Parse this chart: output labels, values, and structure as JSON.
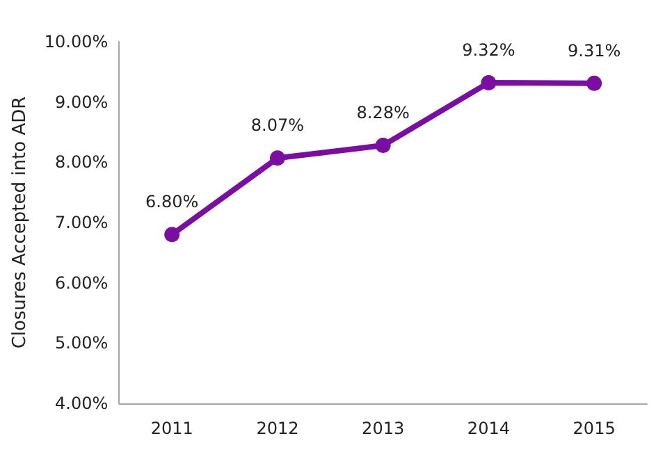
{
  "chart_data": {
    "type": "line",
    "ylabel": "Closures Accepted into ADR",
    "categories": [
      "2011",
      "2012",
      "2013",
      "2014",
      "2015"
    ],
    "series": [
      {
        "color": "#7a0ea0",
        "values": [
          6.8,
          8.07,
          8.28,
          9.32,
          9.31
        ],
        "value_labels": [
          "6.80%",
          "8.07%",
          "8.28%",
          "9.32%",
          "9.31%"
        ]
      }
    ],
    "ylim": [
      4,
      10
    ],
    "yticks": [
      {
        "value": 4,
        "label": "4.00%"
      },
      {
        "value": 5,
        "label": "5.00%"
      },
      {
        "value": 6,
        "label": "6.00%"
      },
      {
        "value": 7,
        "label": "7.00%"
      },
      {
        "value": 8,
        "label": "8.00%"
      },
      {
        "value": 9,
        "label": "9.00%"
      },
      {
        "value": 10,
        "label": "10.00%"
      }
    ],
    "grid": false,
    "marker": "circle",
    "line_style": "solid"
  }
}
